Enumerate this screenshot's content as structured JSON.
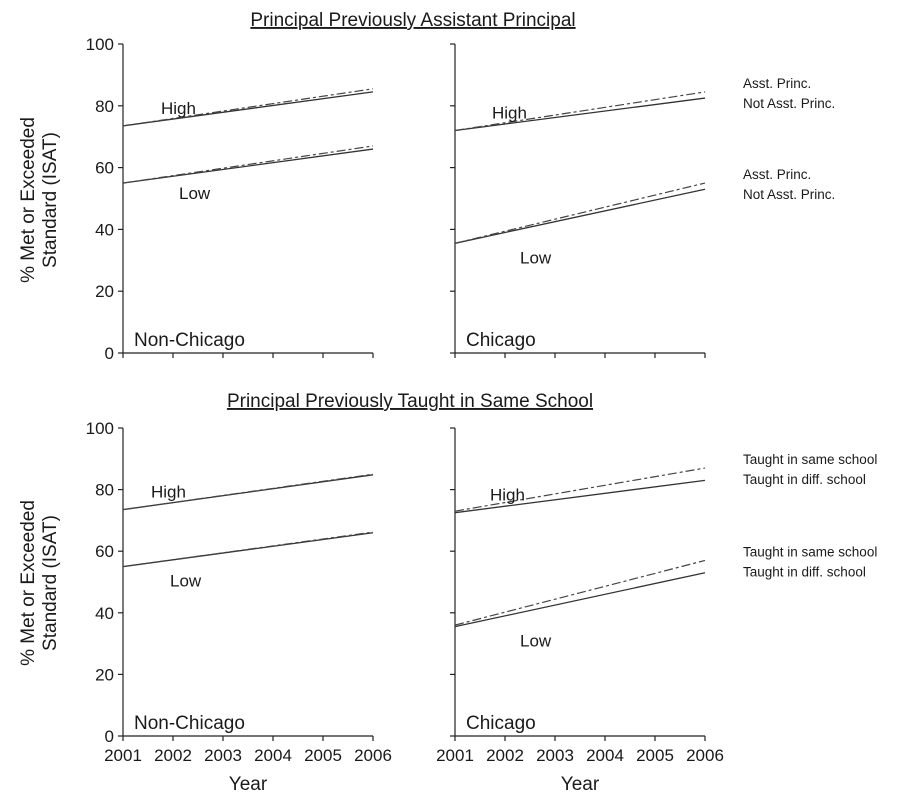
{
  "chart_data": [
    {
      "type": "line",
      "title": "Principal Previously Assistant Principal",
      "region": "Non-Chicago",
      "ylabel_line1": "% Met or Exceeded",
      "ylabel_line2": "Standard (ISAT)",
      "xlabel": "",
      "xlim": [
        2001,
        2006
      ],
      "ylim": [
        0,
        100
      ],
      "yticks": [
        "0",
        "20",
        "40",
        "60",
        "80",
        "100"
      ],
      "xticks": [],
      "groups": [
        {
          "label": "High",
          "series": [
            {
              "style": "solid",
              "x": [
                2001,
                2006
              ],
              "y": [
                73.5,
                84.5
              ]
            },
            {
              "style": "dashed",
              "x": [
                2001,
                2006
              ],
              "y": [
                73.5,
                85.5
              ]
            }
          ]
        },
        {
          "label": "Low",
          "series": [
            {
              "style": "solid",
              "x": [
                2001,
                2006
              ],
              "y": [
                55,
                66
              ]
            },
            {
              "style": "dashed",
              "x": [
                2001,
                2006
              ],
              "y": [
                55,
                67
              ]
            }
          ]
        }
      ]
    },
    {
      "type": "line",
      "title": "",
      "region": "Chicago",
      "xlabel": "",
      "xlim": [
        2001,
        2006
      ],
      "ylim": [
        0,
        100
      ],
      "xticks": [],
      "groups": [
        {
          "label": "High",
          "series": [
            {
              "name": "Not Asst. Princ.",
              "style": "solid",
              "x": [
                2001,
                2006
              ],
              "y": [
                72,
                82.5
              ]
            },
            {
              "name": "Asst. Princ.",
              "style": "dashed",
              "x": [
                2001,
                2006
              ],
              "y": [
                72,
                84.5
              ]
            }
          ]
        },
        {
          "label": "Low",
          "series": [
            {
              "name": "Not Asst. Princ.",
              "style": "solid",
              "x": [
                2001,
                2006
              ],
              "y": [
                35.5,
                53
              ]
            },
            {
              "name": "Asst. Princ.",
              "style": "dashed",
              "x": [
                2001,
                2006
              ],
              "y": [
                35.5,
                55
              ]
            }
          ]
        }
      ]
    },
    {
      "type": "line",
      "title": "Principal Previously Taught in Same School",
      "region": "Non-Chicago",
      "ylabel_line1": "% Met or Exceeded",
      "ylabel_line2": "Standard (ISAT)",
      "xlabel": "Year",
      "xlim": [
        2001,
        2006
      ],
      "ylim": [
        0,
        100
      ],
      "yticks": [
        "0",
        "20",
        "40",
        "60",
        "80",
        "100"
      ],
      "xticks": [
        "2001",
        "2002",
        "2003",
        "2004",
        "2005",
        "2006"
      ],
      "groups": [
        {
          "label": "High",
          "series": [
            {
              "style": "solid",
              "x": [
                2001,
                2006
              ],
              "y": [
                73.5,
                84.8
              ]
            },
            {
              "style": "dashed",
              "x": [
                2001,
                2006
              ],
              "y": [
                73.5,
                85
              ]
            }
          ]
        },
        {
          "label": "Low",
          "series": [
            {
              "style": "solid",
              "x": [
                2001,
                2006
              ],
              "y": [
                55,
                66
              ]
            },
            {
              "style": "dashed",
              "x": [
                2001,
                2006
              ],
              "y": [
                55,
                66.2
              ]
            }
          ]
        }
      ]
    },
    {
      "type": "line",
      "title": "",
      "region": "Chicago",
      "xlabel": "Year",
      "xlim": [
        2001,
        2006
      ],
      "ylim": [
        0,
        100
      ],
      "xticks": [
        "2001",
        "2002",
        "2003",
        "2004",
        "2005",
        "2006"
      ],
      "groups": [
        {
          "label": "High",
          "series": [
            {
              "name": "Taught in diff. school",
              "style": "solid",
              "x": [
                2001,
                2006
              ],
              "y": [
                72.5,
                83
              ]
            },
            {
              "name": "Taught in same school",
              "style": "dashed",
              "x": [
                2001,
                2006
              ],
              "y": [
                73,
                87
              ]
            }
          ]
        },
        {
          "label": "Low",
          "series": [
            {
              "name": "Taught in diff. school",
              "style": "solid",
              "x": [
                2001,
                2006
              ],
              "y": [
                35.5,
                53
              ]
            },
            {
              "name": "Taught in same school",
              "style": "dashed",
              "x": [
                2001,
                2006
              ],
              "y": [
                36,
                57
              ]
            }
          ]
        }
      ]
    }
  ]
}
